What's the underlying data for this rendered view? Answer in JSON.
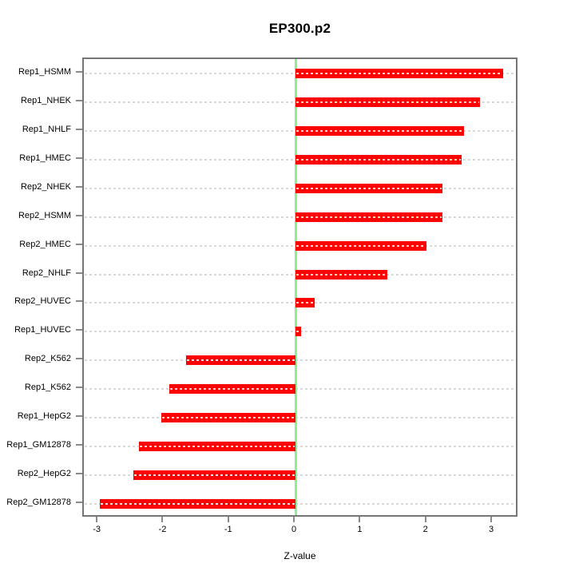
{
  "chart_data": {
    "type": "bar",
    "orientation": "horizontal",
    "title": "EP300.p2",
    "xlabel": "Z-value",
    "categories": [
      "Rep1_HSMM",
      "Rep1_NHEK",
      "Rep1_NHLF",
      "Rep1_HMEC",
      "Rep2_NHEK",
      "Rep2_HSMM",
      "Rep2_HMEC",
      "Rep2_NHLF",
      "Rep2_HUVEC",
      "Rep1_HUVEC",
      "Rep2_K562",
      "Rep1_K562",
      "Rep1_HepG2",
      "Rep1_GM12878",
      "Rep2_HepG2",
      "Rep2_GM12878"
    ],
    "values": [
      3.16,
      2.8,
      2.56,
      2.52,
      2.24,
      2.23,
      1.99,
      1.39,
      0.29,
      0.08,
      -1.67,
      -1.92,
      -2.04,
      -2.38,
      -2.47,
      -2.98
    ],
    "xticks": [
      -3,
      -2,
      -1,
      0,
      1,
      2,
      3
    ],
    "xlim": [
      -3.22,
      3.4
    ],
    "grid": "dashed-horizontal-per-category",
    "legend": "none",
    "colors": {
      "bar": "#ff0000",
      "zero_line": "#90ee90",
      "gridline": "#d8d8d8",
      "axis_box": "#757575",
      "text": "#000000",
      "background": "#ffffff"
    }
  }
}
